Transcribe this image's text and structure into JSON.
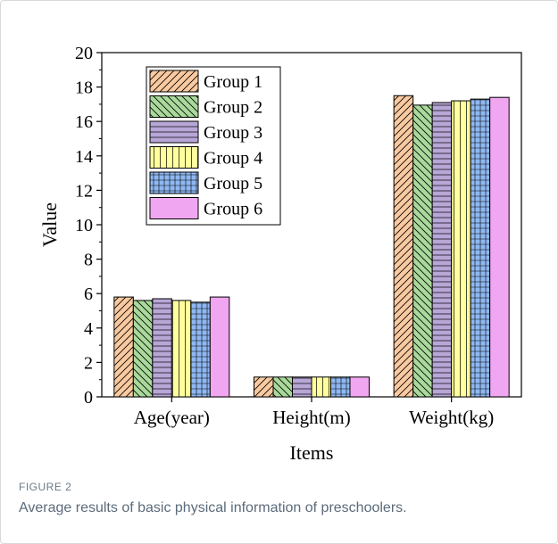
{
  "figure": {
    "label": "FIGURE 2",
    "caption": "Average results of basic physical information of preschoolers."
  },
  "chart_data": {
    "type": "bar",
    "xlabel": "Items",
    "ylabel": "Value",
    "ylim": [
      0,
      20
    ],
    "yticks": [
      0,
      2,
      4,
      6,
      8,
      10,
      12,
      14,
      16,
      18,
      20
    ],
    "categories": [
      "Age(year)",
      "Height(m)",
      "Weight(kg)"
    ],
    "legend_position": "top-left",
    "grid": false,
    "series": [
      {
        "name": "Group 1",
        "values": [
          5.8,
          1.15,
          17.5
        ],
        "color": "#f9c9a0",
        "pattern": "diagonal-up"
      },
      {
        "name": "Group 2",
        "values": [
          5.6,
          1.15,
          16.95
        ],
        "color": "#a9d99b",
        "pattern": "diagonal-down"
      },
      {
        "name": "Group 3",
        "values": [
          5.7,
          1.15,
          17.1
        ],
        "color": "#b7a6d6",
        "pattern": "horizontal"
      },
      {
        "name": "Group 4",
        "values": [
          5.6,
          1.15,
          17.2
        ],
        "color": "#ffff9e",
        "pattern": "vertical"
      },
      {
        "name": "Group 5",
        "values": [
          5.5,
          1.15,
          17.3
        ],
        "color": "#8fb8f2",
        "pattern": "grid"
      },
      {
        "name": "Group 6",
        "values": [
          5.8,
          1.15,
          17.4
        ],
        "color": "#f0a6f0",
        "pattern": "solid"
      }
    ]
  }
}
